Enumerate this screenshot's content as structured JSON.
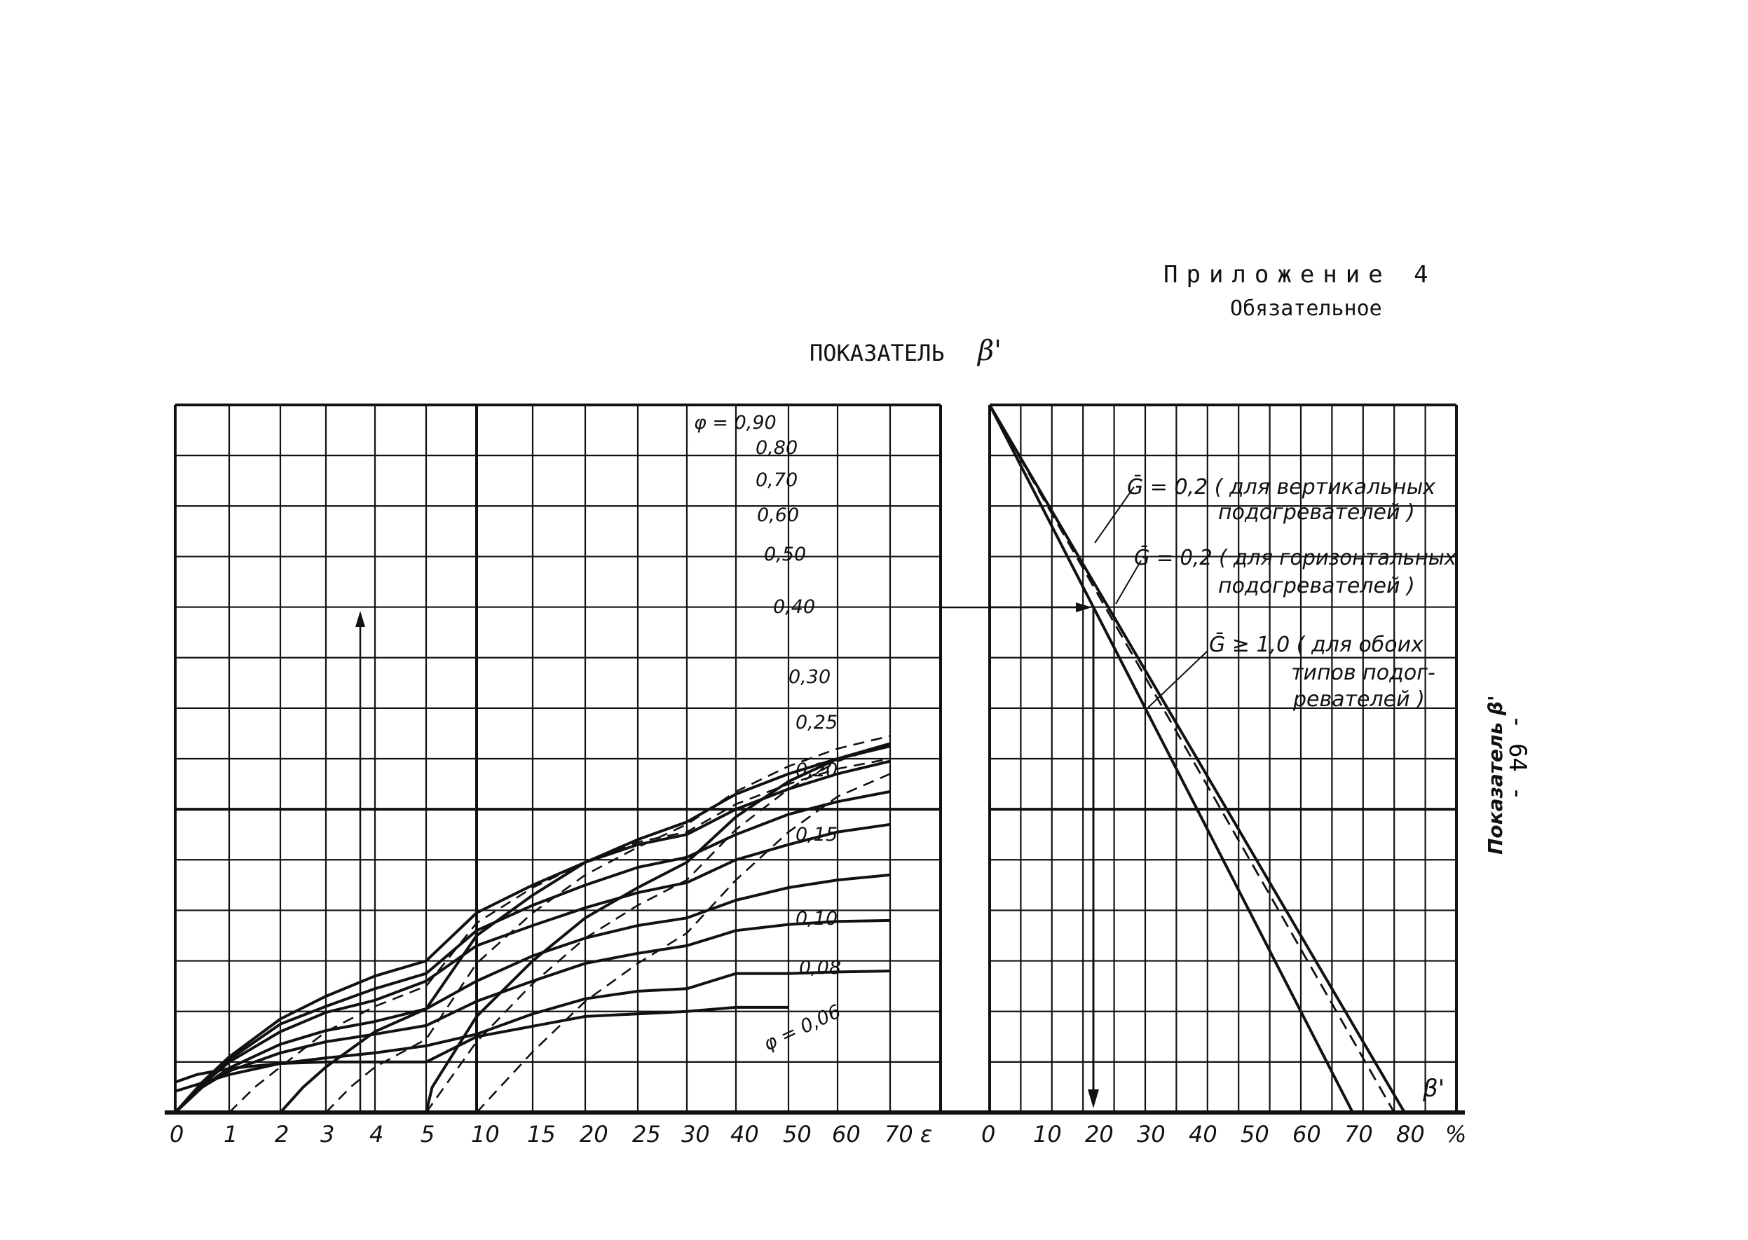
{
  "header": {
    "appendix": "Приложение 4",
    "status": "Обязательное",
    "title": "ПОКАЗАТЕЛЬ",
    "title_symbol": "β'"
  },
  "page_number": "- 64 -",
  "chart_data": [
    {
      "type": "line",
      "x_ticks": [
        "0",
        "1",
        "2",
        "3",
        "4",
        "5",
        "10",
        "15",
        "20",
        "25",
        "30",
        "40",
        "50",
        "60",
        "70 ε"
      ],
      "curves": [
        {
          "name": "φ = 0,90",
          "style": "solid",
          "start": 0,
          "points": [
            [
              0,
              0.6
            ],
            [
              0.4,
              0.75
            ],
            [
              1,
              0.87
            ],
            [
              2,
              0.97
            ],
            [
              3,
              1
            ],
            [
              4,
              1
            ],
            [
              5,
              1
            ],
            [
              10,
              1.5
            ],
            [
              20,
              1.9
            ],
            [
              30,
              2.0
            ],
            [
              40,
              2.08
            ],
            [
              50,
              2.08
            ]
          ]
        },
        {
          "name": "0,80",
          "style": "solid",
          "start": 0,
          "points": [
            [
              0,
              0.42
            ],
            [
              1,
              0.75
            ],
            [
              2,
              0.97
            ],
            [
              3,
              1.08
            ],
            [
              4,
              1.18
            ],
            [
              5,
              1.32
            ],
            [
              10,
              1.55
            ],
            [
              15,
              1.95
            ],
            [
              20,
              2.25
            ],
            [
              25,
              2.4
            ],
            [
              30,
              2.45
            ],
            [
              40,
              2.75
            ],
            [
              50,
              2.75
            ],
            [
              60,
              2.78
            ],
            [
              70,
              2.8
            ]
          ]
        },
        {
          "name": "0,70",
          "style": "solid",
          "start": 0,
          "points": [
            [
              0,
              0.0
            ],
            [
              0.5,
              0.5
            ],
            [
              1,
              0.82
            ],
            [
              2,
              1.18
            ],
            [
              3,
              1.4
            ],
            [
              4,
              1.55
            ],
            [
              5,
              1.72
            ],
            [
              10,
              2.2
            ],
            [
              15,
              2.6
            ],
            [
              20,
              2.95
            ],
            [
              25,
              3.15
            ],
            [
              30,
              3.3
            ],
            [
              40,
              3.6
            ],
            [
              50,
              3.72
            ],
            [
              60,
              3.78
            ],
            [
              70,
              3.8
            ]
          ]
        },
        {
          "name": "0,60",
          "style": "solid",
          "start": 0,
          "points": [
            [
              0,
              0.0
            ],
            [
              0.5,
              0.5
            ],
            [
              1,
              0.88
            ],
            [
              2,
              1.35
            ],
            [
              3,
              1.62
            ],
            [
              4,
              1.8
            ],
            [
              5,
              2.05
            ],
            [
              10,
              2.6
            ],
            [
              15,
              3.1
            ],
            [
              20,
              3.45
            ],
            [
              25,
              3.7
            ],
            [
              30,
              3.85
            ],
            [
              40,
              4.2
            ],
            [
              50,
              4.45
            ],
            [
              60,
              4.6
            ],
            [
              70,
              4.7
            ]
          ]
        },
        {
          "name": "0,50",
          "style": "solid",
          "start": 0,
          "points": [
            [
              0,
              0.0
            ],
            [
              0.5,
              0.55
            ],
            [
              1,
              1.0
            ],
            [
              2,
              1.6
            ],
            [
              3,
              1.98
            ],
            [
              4,
              2.22
            ],
            [
              5,
              2.6
            ],
            [
              10,
              3.3
            ],
            [
              15,
              3.7
            ],
            [
              20,
              4.05
            ],
            [
              25,
              4.35
            ],
            [
              30,
              4.55
            ],
            [
              40,
              5.0
            ],
            [
              50,
              5.3
            ],
            [
              60,
              5.55
            ],
            [
              70,
              5.7
            ]
          ]
        },
        {
          "name": "0,40",
          "style": "solid",
          "start": 0,
          "points": [
            [
              0,
              0.0
            ],
            [
              0.5,
              0.55
            ],
            [
              1,
              1.05
            ],
            [
              2,
              1.75
            ],
            [
              3,
              2.1
            ],
            [
              4,
              2.45
            ],
            [
              5,
              2.75
            ],
            [
              10,
              3.6
            ],
            [
              15,
              4.1
            ],
            [
              20,
              4.5
            ],
            [
              25,
              4.85
            ],
            [
              30,
              5.05
            ],
            [
              40,
              5.5
            ],
            [
              50,
              5.9
            ],
            [
              60,
              6.15
            ],
            [
              70,
              6.35
            ]
          ]
        },
        {
          "name": "0,30",
          "style": "solid",
          "start": 0,
          "points": [
            [
              0,
              0.0
            ],
            [
              0.5,
              0.6
            ],
            [
              1,
              1.1
            ],
            [
              2,
              1.85
            ],
            [
              3,
              2.3
            ],
            [
              4,
              2.7
            ],
            [
              5,
              3.0
            ],
            [
              10,
              3.95
            ],
            [
              15,
              4.5
            ],
            [
              20,
              4.95
            ],
            [
              25,
              5.3
            ],
            [
              30,
              5.5
            ],
            [
              40,
              6.0
            ],
            [
              50,
              6.4
            ],
            [
              60,
              6.7
            ],
            [
              70,
              6.95
            ]
          ]
        },
        {
          "name": "0,25",
          "style": "dashed",
          "start": 1,
          "points": [
            [
              1,
              0.0
            ],
            [
              1.5,
              0.5
            ],
            [
              2,
              0.9
            ],
            [
              3,
              1.6
            ],
            [
              4,
              2.1
            ],
            [
              5,
              2.5
            ],
            [
              10,
              3.75
            ],
            [
              15,
              4.45
            ],
            [
              20,
              4.95
            ],
            [
              25,
              5.35
            ],
            [
              30,
              5.55
            ],
            [
              40,
              6.1
            ],
            [
              50,
              6.5
            ],
            [
              60,
              6.8
            ],
            [
              70,
              7.0
            ]
          ]
        },
        {
          "name": "0,20",
          "style": "solid",
          "start": 2,
          "points": [
            [
              2,
              0.0
            ],
            [
              2.5,
              0.5
            ],
            [
              3,
              0.9
            ],
            [
              4,
              1.6
            ],
            [
              5,
              2.05
            ],
            [
              10,
              3.5
            ],
            [
              15,
              4.3
            ],
            [
              20,
              4.95
            ],
            [
              25,
              5.4
            ],
            [
              30,
              5.75
            ],
            [
              40,
              6.3
            ],
            [
              50,
              6.7
            ],
            [
              60,
              7.0
            ],
            [
              70,
              7.25
            ]
          ]
        },
        {
          "name": "0,15",
          "style": "dashed",
          "start": 3,
          "points": [
            [
              3,
              0.0
            ],
            [
              3.5,
              0.5
            ],
            [
              4,
              0.9
            ],
            [
              5,
              1.45
            ],
            [
              10,
              2.95
            ],
            [
              15,
              3.95
            ],
            [
              20,
              4.7
            ],
            [
              25,
              5.25
            ],
            [
              30,
              5.7
            ],
            [
              40,
              6.35
            ],
            [
              50,
              6.85
            ],
            [
              60,
              7.2
            ],
            [
              70,
              7.45
            ]
          ]
        },
        {
          "name": "0,10",
          "style": "solid",
          "start": 5,
          "points": [
            [
              5,
              0.0
            ],
            [
              5.6,
              0.5
            ],
            [
              10,
              1.9
            ],
            [
              15,
              3.0
            ],
            [
              20,
              3.85
            ],
            [
              25,
              4.45
            ],
            [
              30,
              4.95
            ],
            [
              40,
              5.85
            ],
            [
              50,
              6.55
            ],
            [
              60,
              7.0
            ],
            [
              70,
              7.3
            ]
          ]
        },
        {
          "name": "0,08",
          "style": "dashed",
          "start": 5,
          "points": [
            [
              5,
              0.0
            ],
            [
              10,
              1.4
            ],
            [
              15,
              2.55
            ],
            [
              20,
              3.45
            ],
            [
              25,
              4.1
            ],
            [
              30,
              4.6
            ],
            [
              40,
              5.6
            ],
            [
              50,
              6.4
            ],
            [
              60,
              6.95
            ],
            [
              70,
              7.3
            ]
          ]
        },
        {
          "name": "φ = 0,06",
          "style": "dashed",
          "start": 10,
          "points": [
            [
              10,
              0.0
            ],
            [
              15,
              1.2
            ],
            [
              20,
              2.2
            ],
            [
              25,
              2.95
            ],
            [
              30,
              3.55
            ],
            [
              40,
              4.6
            ],
            [
              50,
              5.55
            ],
            [
              60,
              6.25
            ],
            [
              70,
              6.7
            ]
          ]
        }
      ]
    },
    {
      "type": "line",
      "x_ticks": [
        "0",
        "10",
        "20",
        "30",
        "40",
        "50",
        "60",
        "70",
        "80",
        "%"
      ],
      "xlabel": "β'",
      "ylabel": "Показатель β'",
      "series": [
        {
          "name": "Ḡ ≥ 1,0 (для обоих типов подогревателей)",
          "style": "solid",
          "x": [
            0,
            70
          ]
        },
        {
          "name": "Ḡ = 0,2 (для горизонтальных подогревателей)",
          "style": "dashed",
          "x": [
            0,
            78
          ]
        },
        {
          "name": "Ḡ = 0,2 (для вертикальных подогревателей)",
          "style": "solid",
          "x": [
            0,
            80
          ]
        }
      ],
      "example_value": 20
    }
  ],
  "annotations": {
    "vert_line1": "Ḡ = 0,2  ( для вертикальных",
    "vert_line2": "подогревателей )",
    "horiz_line1": "Ḡ = 0,2  ( для горизонтальных",
    "horiz_line2": "подогревателей )",
    "both_line1": "Ḡ ≥ 1,0  ( для обоих",
    "both_line2": "типов подог-",
    "both_line3": "ревателей )"
  }
}
